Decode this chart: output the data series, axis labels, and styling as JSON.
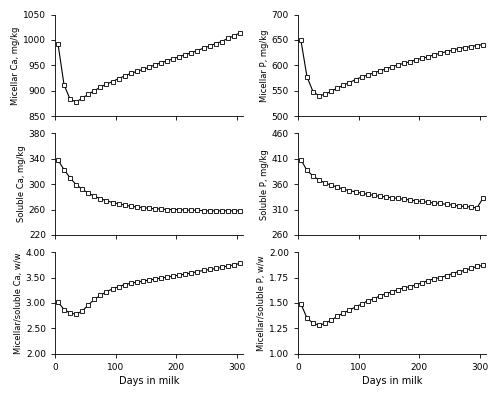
{
  "days": [
    5,
    15,
    25,
    35,
    45,
    55,
    65,
    75,
    85,
    95,
    105,
    115,
    125,
    135,
    145,
    155,
    165,
    175,
    185,
    195,
    205,
    215,
    225,
    235,
    245,
    255,
    265,
    275,
    285,
    295,
    305
  ],
  "micellar_ca": [
    993,
    912,
    883,
    878,
    885,
    893,
    900,
    907,
    913,
    918,
    924,
    929,
    934,
    938,
    942,
    946,
    951,
    955,
    959,
    963,
    967,
    971,
    975,
    979,
    984,
    988,
    993,
    997,
    1003,
    1008,
    1014
  ],
  "soluble_ca": [
    338,
    323,
    310,
    299,
    292,
    286,
    281,
    277,
    274,
    271,
    269,
    267,
    265,
    264,
    263,
    262,
    261,
    261,
    260,
    260,
    260,
    259,
    259,
    259,
    258,
    258,
    258,
    258,
    258,
    258,
    258
  ],
  "micellar_soluble_ca": [
    3.02,
    2.87,
    2.8,
    2.78,
    2.84,
    2.96,
    3.07,
    3.15,
    3.22,
    3.28,
    3.32,
    3.36,
    3.39,
    3.41,
    3.43,
    3.45,
    3.47,
    3.49,
    3.51,
    3.53,
    3.55,
    3.57,
    3.59,
    3.62,
    3.64,
    3.66,
    3.68,
    3.7,
    3.73,
    3.75,
    3.78
  ],
  "micellar_p": [
    649,
    577,
    548,
    540,
    543,
    549,
    555,
    561,
    566,
    572,
    577,
    581,
    585,
    589,
    593,
    597,
    601,
    604,
    607,
    611,
    614,
    617,
    621,
    624,
    627,
    630,
    633,
    635,
    637,
    639,
    641
  ],
  "soluble_p": [
    408,
    387,
    376,
    368,
    362,
    358,
    354,
    350,
    347,
    345,
    342,
    340,
    338,
    336,
    335,
    333,
    332,
    330,
    329,
    327,
    326,
    324,
    323,
    322,
    320,
    319,
    317,
    316,
    315,
    313,
    332
  ],
  "micellar_soluble_p": [
    1.49,
    1.35,
    1.3,
    1.28,
    1.3,
    1.33,
    1.37,
    1.4,
    1.43,
    1.46,
    1.49,
    1.52,
    1.54,
    1.57,
    1.59,
    1.61,
    1.63,
    1.65,
    1.66,
    1.68,
    1.7,
    1.72,
    1.74,
    1.75,
    1.77,
    1.79,
    1.81,
    1.82,
    1.84,
    1.86,
    1.87
  ],
  "marker": "s",
  "markersize": 3.5,
  "linewidth": 0.8,
  "color": "black",
  "xticks": [
    0,
    100,
    200,
    300
  ],
  "micellar_ca_yticks": [
    850,
    900,
    950,
    1000,
    1050
  ],
  "soluble_ca_yticks": [
    220,
    260,
    300,
    340,
    380
  ],
  "micellar_soluble_ca_yticks": [
    2.0,
    2.5,
    3.0,
    3.5,
    4.0
  ],
  "micellar_p_yticks": [
    500,
    550,
    600,
    650,
    700
  ],
  "soluble_p_yticks": [
    260,
    310,
    360,
    410,
    460
  ],
  "micellar_soluble_p_yticks": [
    1.0,
    1.25,
    1.5,
    1.75,
    2.0
  ],
  "ylabel_micellar_ca": "Micellar Ca, mg/kg",
  "ylabel_soluble_ca": "Soluble Ca, mg/kg",
  "ylabel_micellar_soluble_ca": "Micellar/soluble Ca, w/w",
  "ylabel_micellar_p": "Micellar P, mg/kg",
  "ylabel_soluble_p": "Soluble P, mg/kg",
  "ylabel_micellar_soluble_p": "Micellar/soluble P, w/w",
  "xlabel": "Days in milk"
}
